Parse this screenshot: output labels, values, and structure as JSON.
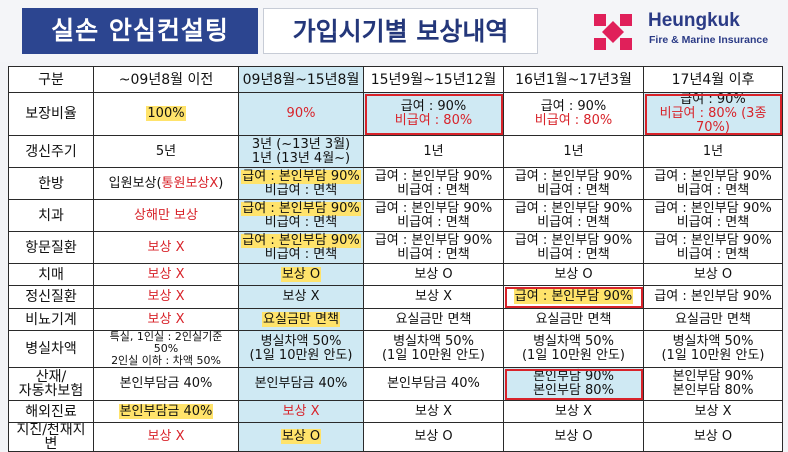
{
  "header": {
    "title_left": "실손 안심컨설팅",
    "title_right": "가입시기별 보상내역",
    "logo_name": "Heungkuk",
    "logo_sub": "Fire & Marine Insurance",
    "brand_color": "#e0205a"
  },
  "table": {
    "columns": [
      "구분",
      "~09년8월 이전",
      "09년8월~15년8월",
      "15년9월~15년12월",
      "16년1월~17년3월",
      "17년4월 이후"
    ],
    "rows": {
      "coverage": {
        "label": "보장비율",
        "c1": "100%",
        "c2": "90%",
        "c3_a": "급여 : 90%",
        "c3_b": "비급여 : 80%",
        "c4_a": "급여 : 90%",
        "c4_b": "비급여 : 80%",
        "c5_a": "급여 : 90%",
        "c5_b": "비급여 : 80% (3종 70%)"
      },
      "renewal": {
        "label": "갱신주기",
        "c1": "5년",
        "c2_a": "3년 (~13년 3월)",
        "c2_b": "1년 (13년 4월~)",
        "c3": "1년",
        "c4": "1년",
        "c5": "1년"
      },
      "oriental": {
        "label": "한방",
        "c1_a": "입원보상(",
        "c1_b": "통원보상X",
        "c1_c": ")",
        "cov_a": "급여 : 본인부담 90%",
        "cov_b": "비급여 : 면책"
      },
      "dental": {
        "label": "치과",
        "c1": "상해만 보상",
        "cov_a": "급여 : 본인부담 90%",
        "cov_b": "비급여 : 면책"
      },
      "anal": {
        "label": "항문질환",
        "c1": "보상 X",
        "cov_a": "급여 : 본인부담 90%",
        "cov_b": "비급여 : 면책"
      },
      "dementia": {
        "label": "치매",
        "c1": "보상 X",
        "c2": "보상 O",
        "c3": "보상 O",
        "c4": "보상 O",
        "c5": "보상 O"
      },
      "mental": {
        "label": "정신질환",
        "c1": "보상 X",
        "c2": "보상 X",
        "c3": "보상 X",
        "c4": "급여 : 본인부담 90%",
        "c5": "급여 : 본인부담 90%"
      },
      "urology": {
        "label": "비뇨기계",
        "c1": "보상 X",
        "c2": "요실금만 면책",
        "c3": "요실금만 면책",
        "c4": "요실금만 면책",
        "c5": "요실금만 면책"
      },
      "ward": {
        "label": "병실차액",
        "c1_a": "특실, 1인실 : 2인실기준 50%",
        "c1_b": "2인실 이하 : 차액 50%",
        "c_a": "병실차액 50%",
        "c_b": "(1일 10만원 안도)"
      },
      "industrial": {
        "label_a": "산재/",
        "label_b": "자동차보험",
        "c1": "본인부담금 40%",
        "c2": "본인부담금 40%",
        "c3": "본인부담금 40%",
        "c4_a": "본인부담 90%",
        "c4_b": "본인부담 80%",
        "c5_a": "본인부담 90%",
        "c5_b": "본인부담 80%"
      },
      "overseas": {
        "label": "해외진료",
        "c1": "본인부담금 40%",
        "c2": "보상 X",
        "c3": "보상 X",
        "c4": "보상 X",
        "c5": "보상 X"
      },
      "disaster": {
        "label": "지진/천재지변",
        "c1": "보상 X",
        "c2": "보상 O",
        "c3": "보상 O",
        "c4": "보상 O",
        "c5": "보상 O"
      }
    }
  }
}
